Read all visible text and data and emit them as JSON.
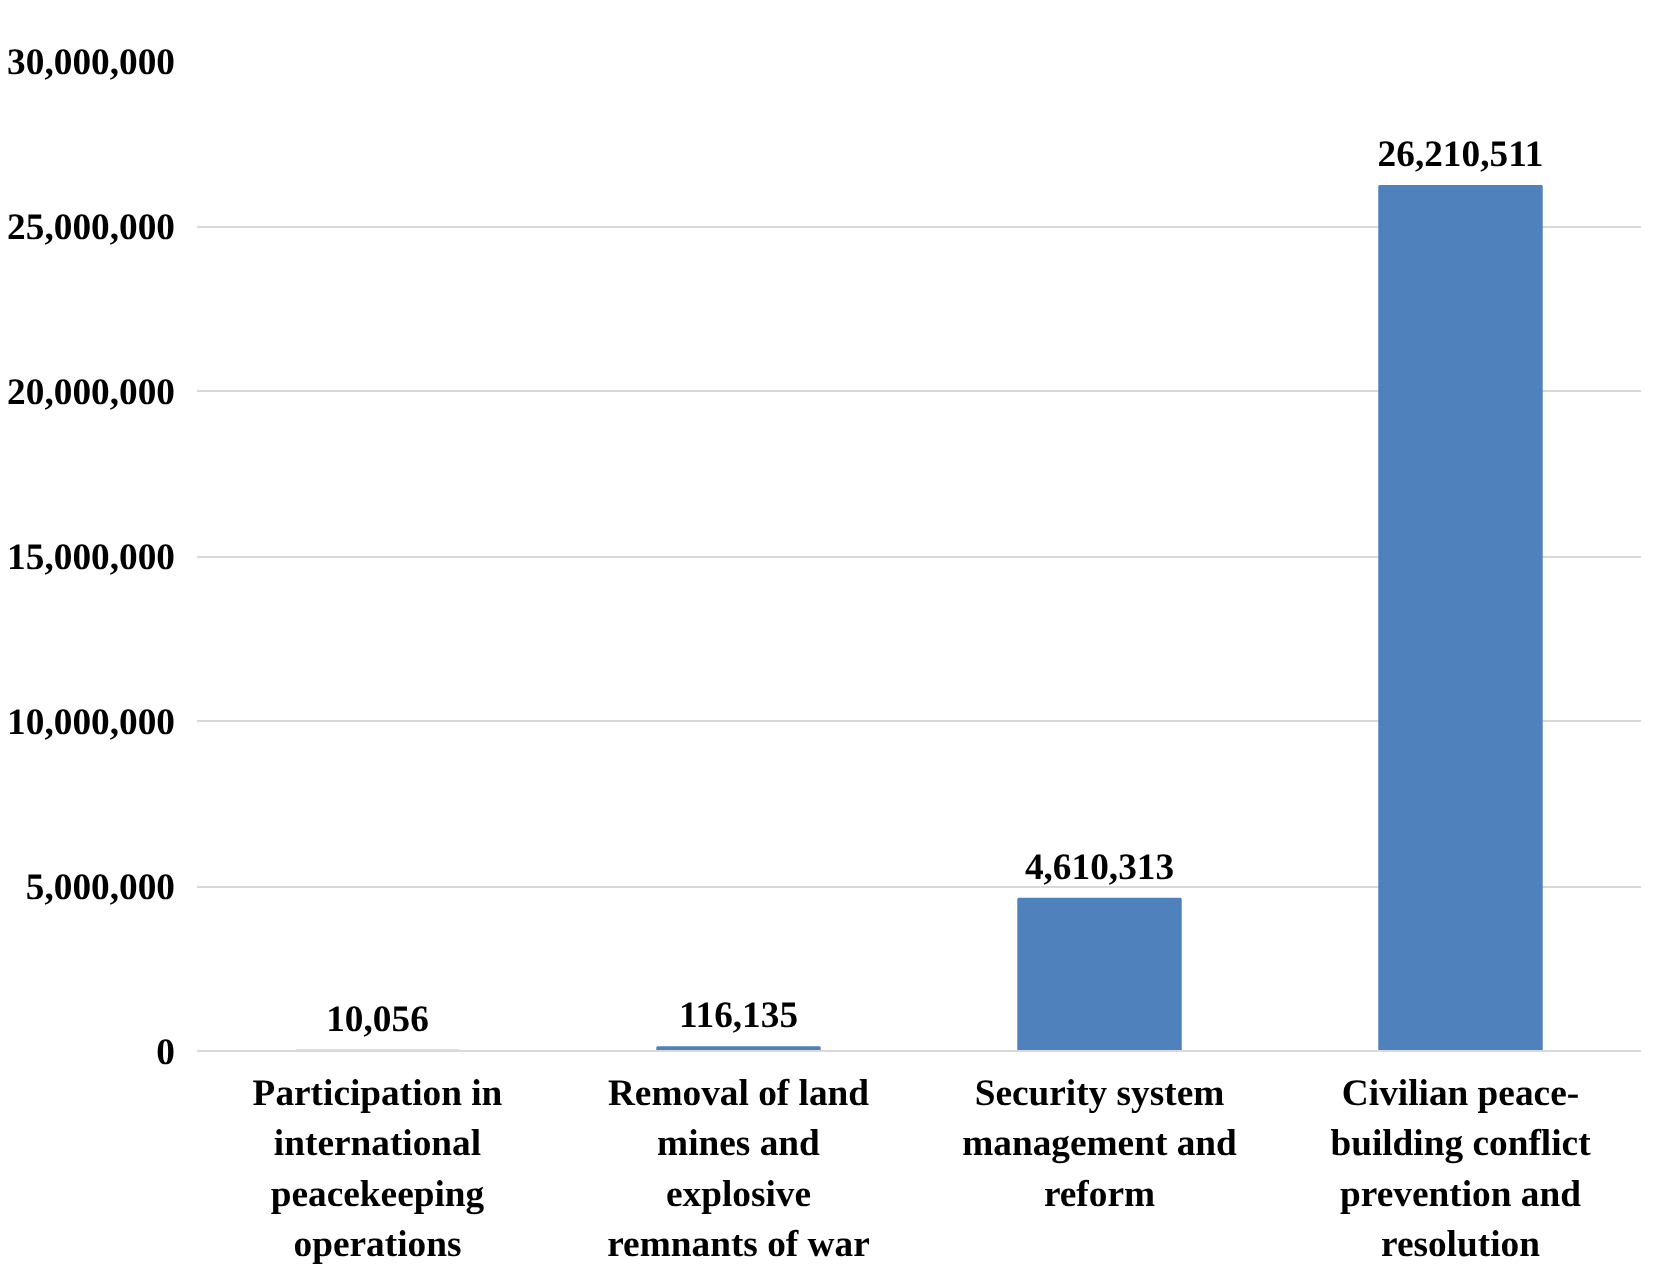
{
  "chart_data": {
    "type": "bar",
    "categories": [
      "Participation in international peacekeeping operations",
      "Removal of land mines and explosive remnants of war",
      "Security system management and reform",
      "Civilian peace-building conflict prevention and resolution"
    ],
    "values": [
      10056,
      116135,
      4610313,
      26210511
    ],
    "color": "#4f81bd",
    "ylim": [
      0,
      30000000
    ],
    "yticks": [
      {
        "value": 0,
        "label": "0"
      },
      {
        "value": 5000000,
        "label": "5,000,000"
      },
      {
        "value": 10000000,
        "label": "10,000,000"
      },
      {
        "value": 15000000,
        "label": "15,000,000"
      },
      {
        "value": 20000000,
        "label": "20,000,000"
      },
      {
        "value": 25000000,
        "label": "25,000,000"
      },
      {
        "value": 30000000,
        "label": "30,000,000"
      }
    ],
    "grid": "y",
    "value_labels": [
      "10,056",
      "116,135",
      "4,610,313",
      "26,210,511"
    ]
  }
}
